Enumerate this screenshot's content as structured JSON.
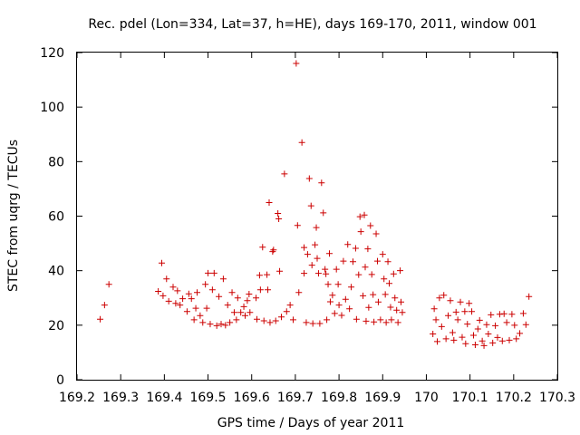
{
  "chart_data": {
    "type": "scatter",
    "title": "Rec. pdel (Lon=334, Lat=37, h=HE), days 169-170, 2011, window 001",
    "xlabel": "GPS time / Days of year 2011",
    "ylabel": "STEC from uqrg / TECUs",
    "xlim": [
      169.2,
      170.3
    ],
    "ylim": [
      0,
      120
    ],
    "x_ticks": [
      "169.2",
      "169.3",
      "169.4",
      "169.5",
      "169.6",
      "169.7",
      "169.8",
      "169.9",
      "170",
      "170.1",
      "170.2",
      "170.3"
    ],
    "y_ticks": [
      "0",
      "20",
      "40",
      "60",
      "80",
      "100",
      "120"
    ],
    "grid": false,
    "marker": "+",
    "color": "#cc0000",
    "points": [
      [
        169.253,
        22.2
      ],
      [
        169.263,
        27.4
      ],
      [
        169.273,
        35.0
      ],
      [
        169.386,
        32.4
      ],
      [
        169.394,
        42.8
      ],
      [
        169.397,
        30.8
      ],
      [
        169.405,
        37.0
      ],
      [
        169.41,
        28.8
      ],
      [
        169.42,
        34.0
      ],
      [
        169.426,
        28.0
      ],
      [
        169.43,
        32.6
      ],
      [
        169.436,
        27.4
      ],
      [
        169.442,
        29.7
      ],
      [
        169.452,
        25.0
      ],
      [
        169.456,
        31.5
      ],
      [
        169.462,
        29.7
      ],
      [
        169.468,
        22.0
      ],
      [
        169.472,
        26.2
      ],
      [
        169.475,
        32.0
      ],
      [
        169.482,
        23.5
      ],
      [
        169.488,
        21.0
      ],
      [
        169.494,
        35.0
      ],
      [
        169.497,
        26.2
      ],
      [
        169.5,
        39.1
      ],
      [
        169.505,
        20.4
      ],
      [
        169.51,
        33.0
      ],
      [
        169.514,
        39.1
      ],
      [
        169.52,
        19.8
      ],
      [
        169.525,
        30.5
      ],
      [
        169.53,
        20.4
      ],
      [
        169.535,
        37.0
      ],
      [
        169.54,
        20.0
      ],
      [
        169.545,
        27.4
      ],
      [
        169.55,
        21.0
      ],
      [
        169.555,
        32.0
      ],
      [
        169.56,
        24.7
      ],
      [
        169.565,
        22.0
      ],
      [
        169.568,
        30.0
      ],
      [
        169.575,
        24.7
      ],
      [
        169.582,
        26.8
      ],
      [
        169.585,
        23.5
      ],
      [
        169.59,
        29.0
      ],
      [
        169.594,
        31.4
      ],
      [
        169.596,
        24.7
      ],
      [
        169.61,
        30.0
      ],
      [
        169.612,
        22.2
      ],
      [
        169.618,
        38.3
      ],
      [
        169.62,
        33.0
      ],
      [
        169.625,
        48.6
      ],
      [
        169.628,
        21.6
      ],
      [
        169.635,
        38.5
      ],
      [
        169.637,
        33.0
      ],
      [
        169.64,
        65.0
      ],
      [
        169.642,
        21.0
      ],
      [
        169.648,
        47.0
      ],
      [
        169.65,
        47.6
      ],
      [
        169.655,
        21.6
      ],
      [
        169.66,
        61.0
      ],
      [
        169.662,
        59.0
      ],
      [
        169.664,
        39.8
      ],
      [
        169.668,
        23.0
      ],
      [
        169.675,
        75.5
      ],
      [
        169.68,
        25.0
      ],
      [
        169.688,
        27.4
      ],
      [
        169.695,
        22.0
      ],
      [
        169.702,
        116.0
      ],
      [
        169.705,
        56.6
      ],
      [
        169.708,
        32.0
      ],
      [
        169.715,
        87.0
      ],
      [
        169.72,
        48.5
      ],
      [
        169.72,
        39.0
      ],
      [
        169.725,
        21.0
      ],
      [
        169.728,
        46.0
      ],
      [
        169.732,
        73.8
      ],
      [
        169.736,
        63.8
      ],
      [
        169.738,
        42.0
      ],
      [
        169.74,
        20.6
      ],
      [
        169.745,
        49.5
      ],
      [
        169.748,
        55.8
      ],
      [
        169.75,
        44.5
      ],
      [
        169.753,
        39.0
      ],
      [
        169.756,
        20.6
      ],
      [
        169.76,
        72.2
      ],
      [
        169.764,
        61.2
      ],
      [
        169.768,
        40.5
      ],
      [
        169.77,
        38.8
      ],
      [
        169.772,
        22.0
      ],
      [
        169.775,
        35.0
      ],
      [
        169.778,
        46.3
      ],
      [
        169.78,
        28.6
      ],
      [
        169.785,
        31.0
      ],
      [
        169.79,
        24.3
      ],
      [
        169.794,
        40.5
      ],
      [
        169.798,
        35.0
      ],
      [
        169.8,
        27.4
      ],
      [
        169.806,
        23.6
      ],
      [
        169.81,
        43.5
      ],
      [
        169.815,
        29.5
      ],
      [
        169.82,
        49.6
      ],
      [
        169.824,
        26.0
      ],
      [
        169.828,
        34.0
      ],
      [
        169.832,
        43.3
      ],
      [
        169.838,
        48.2
      ],
      [
        169.84,
        22.2
      ],
      [
        169.845,
        38.5
      ],
      [
        169.848,
        59.8
      ],
      [
        169.85,
        54.3
      ],
      [
        169.855,
        30.8
      ],
      [
        169.858,
        60.4
      ],
      [
        169.86,
        41.3
      ],
      [
        169.862,
        21.5
      ],
      [
        169.866,
        48.0
      ],
      [
        169.868,
        26.5
      ],
      [
        169.872,
        56.5
      ],
      [
        169.875,
        38.6
      ],
      [
        169.878,
        31.2
      ],
      [
        169.88,
        21.2
      ],
      [
        169.885,
        53.5
      ],
      [
        169.888,
        43.5
      ],
      [
        169.89,
        28.5
      ],
      [
        169.895,
        22.0
      ],
      [
        169.9,
        46.0
      ],
      [
        169.903,
        37.0
      ],
      [
        169.906,
        31.3
      ],
      [
        169.908,
        21.0
      ],
      [
        169.912,
        43.3
      ],
      [
        169.915,
        35.3
      ],
      [
        169.918,
        26.6
      ],
      [
        169.92,
        22.0
      ],
      [
        169.925,
        38.8
      ],
      [
        169.928,
        30.0
      ],
      [
        169.932,
        25.5
      ],
      [
        169.935,
        21.0
      ],
      [
        169.94,
        40.0
      ],
      [
        169.942,
        28.5
      ],
      [
        169.945,
        24.7
      ],
      [
        170.015,
        16.8
      ],
      [
        170.018,
        26.0
      ],
      [
        170.022,
        22.0
      ],
      [
        170.025,
        14.0
      ],
      [
        170.03,
        30.0
      ],
      [
        170.035,
        19.5
      ],
      [
        170.04,
        31.0
      ],
      [
        170.045,
        15.0
      ],
      [
        170.05,
        23.5
      ],
      [
        170.055,
        29.0
      ],
      [
        170.06,
        17.3
      ],
      [
        170.063,
        14.5
      ],
      [
        170.068,
        24.8
      ],
      [
        170.072,
        22.0
      ],
      [
        170.078,
        28.5
      ],
      [
        170.082,
        15.6
      ],
      [
        170.088,
        25.0
      ],
      [
        170.09,
        13.2
      ],
      [
        170.094,
        20.4
      ],
      [
        170.098,
        28.0
      ],
      [
        170.104,
        25.0
      ],
      [
        170.108,
        16.3
      ],
      [
        170.112,
        12.8
      ],
      [
        170.118,
        18.6
      ],
      [
        170.122,
        21.8
      ],
      [
        170.128,
        14.2
      ],
      [
        170.132,
        12.5
      ],
      [
        170.138,
        20.2
      ],
      [
        170.142,
        16.8
      ],
      [
        170.148,
        23.8
      ],
      [
        170.152,
        13.5
      ],
      [
        170.158,
        19.8
      ],
      [
        170.163,
        15.5
      ],
      [
        170.168,
        24.0
      ],
      [
        170.174,
        14.2
      ],
      [
        170.178,
        24.2
      ],
      [
        170.184,
        21.0
      ],
      [
        170.19,
        14.5
      ],
      [
        170.196,
        24.0
      ],
      [
        170.202,
        20.0
      ],
      [
        170.206,
        15.0
      ],
      [
        170.214,
        17.0
      ],
      [
        170.222,
        24.3
      ],
      [
        170.228,
        20.2
      ],
      [
        170.235,
        30.5
      ]
    ]
  }
}
